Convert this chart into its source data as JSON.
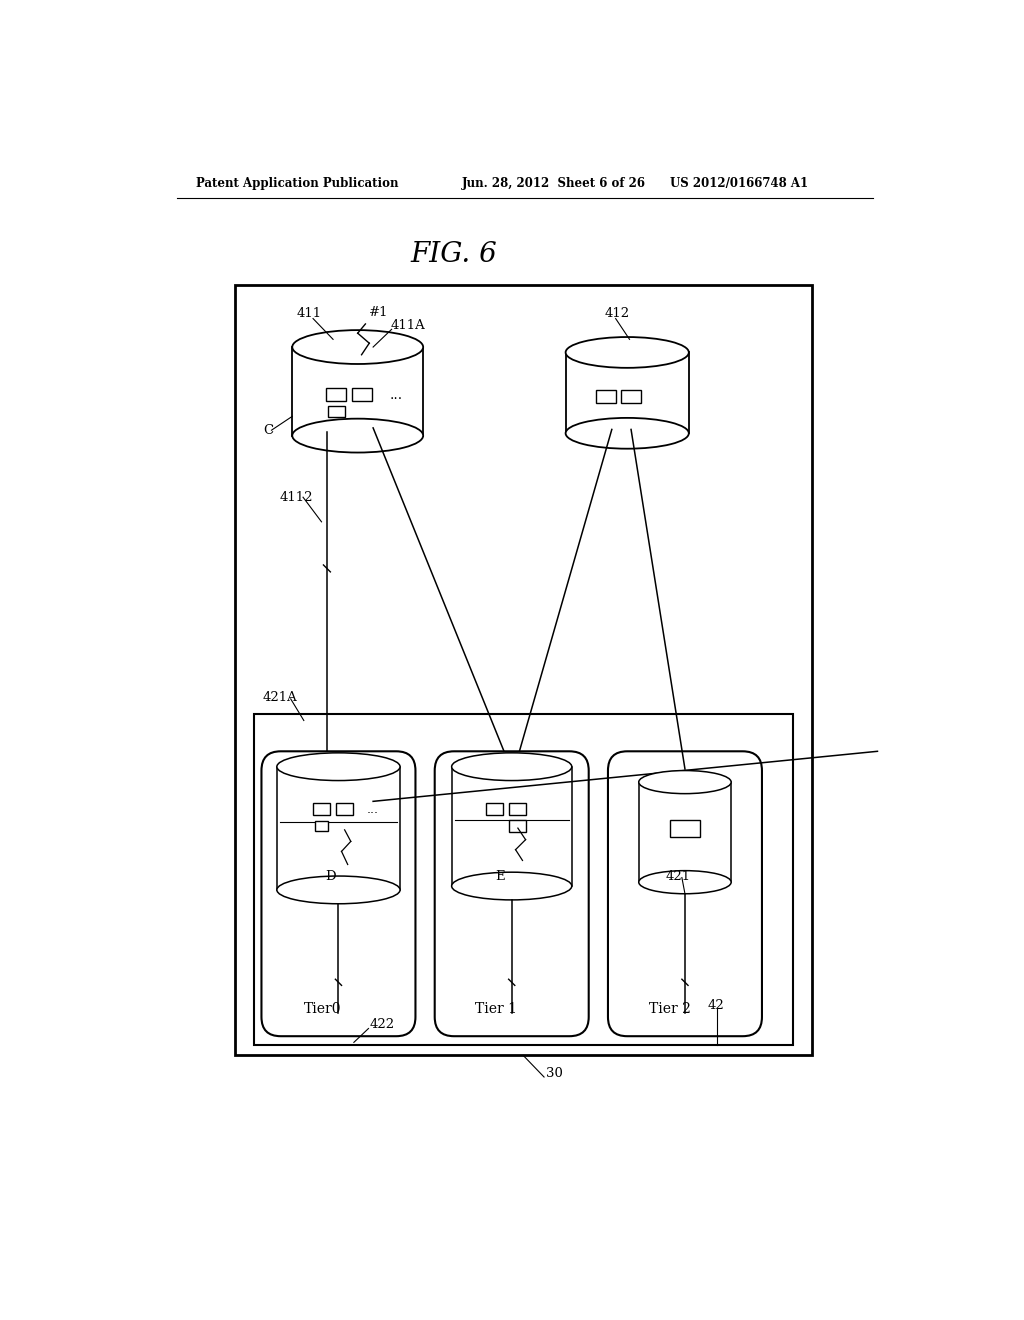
{
  "bg_color": "#ffffff",
  "header_left": "Patent Application Publication",
  "header_mid": "Jun. 28, 2012  Sheet 6 of 26",
  "header_right": "US 2012/0166748 A1",
  "fig_title": "FIG. 6"
}
